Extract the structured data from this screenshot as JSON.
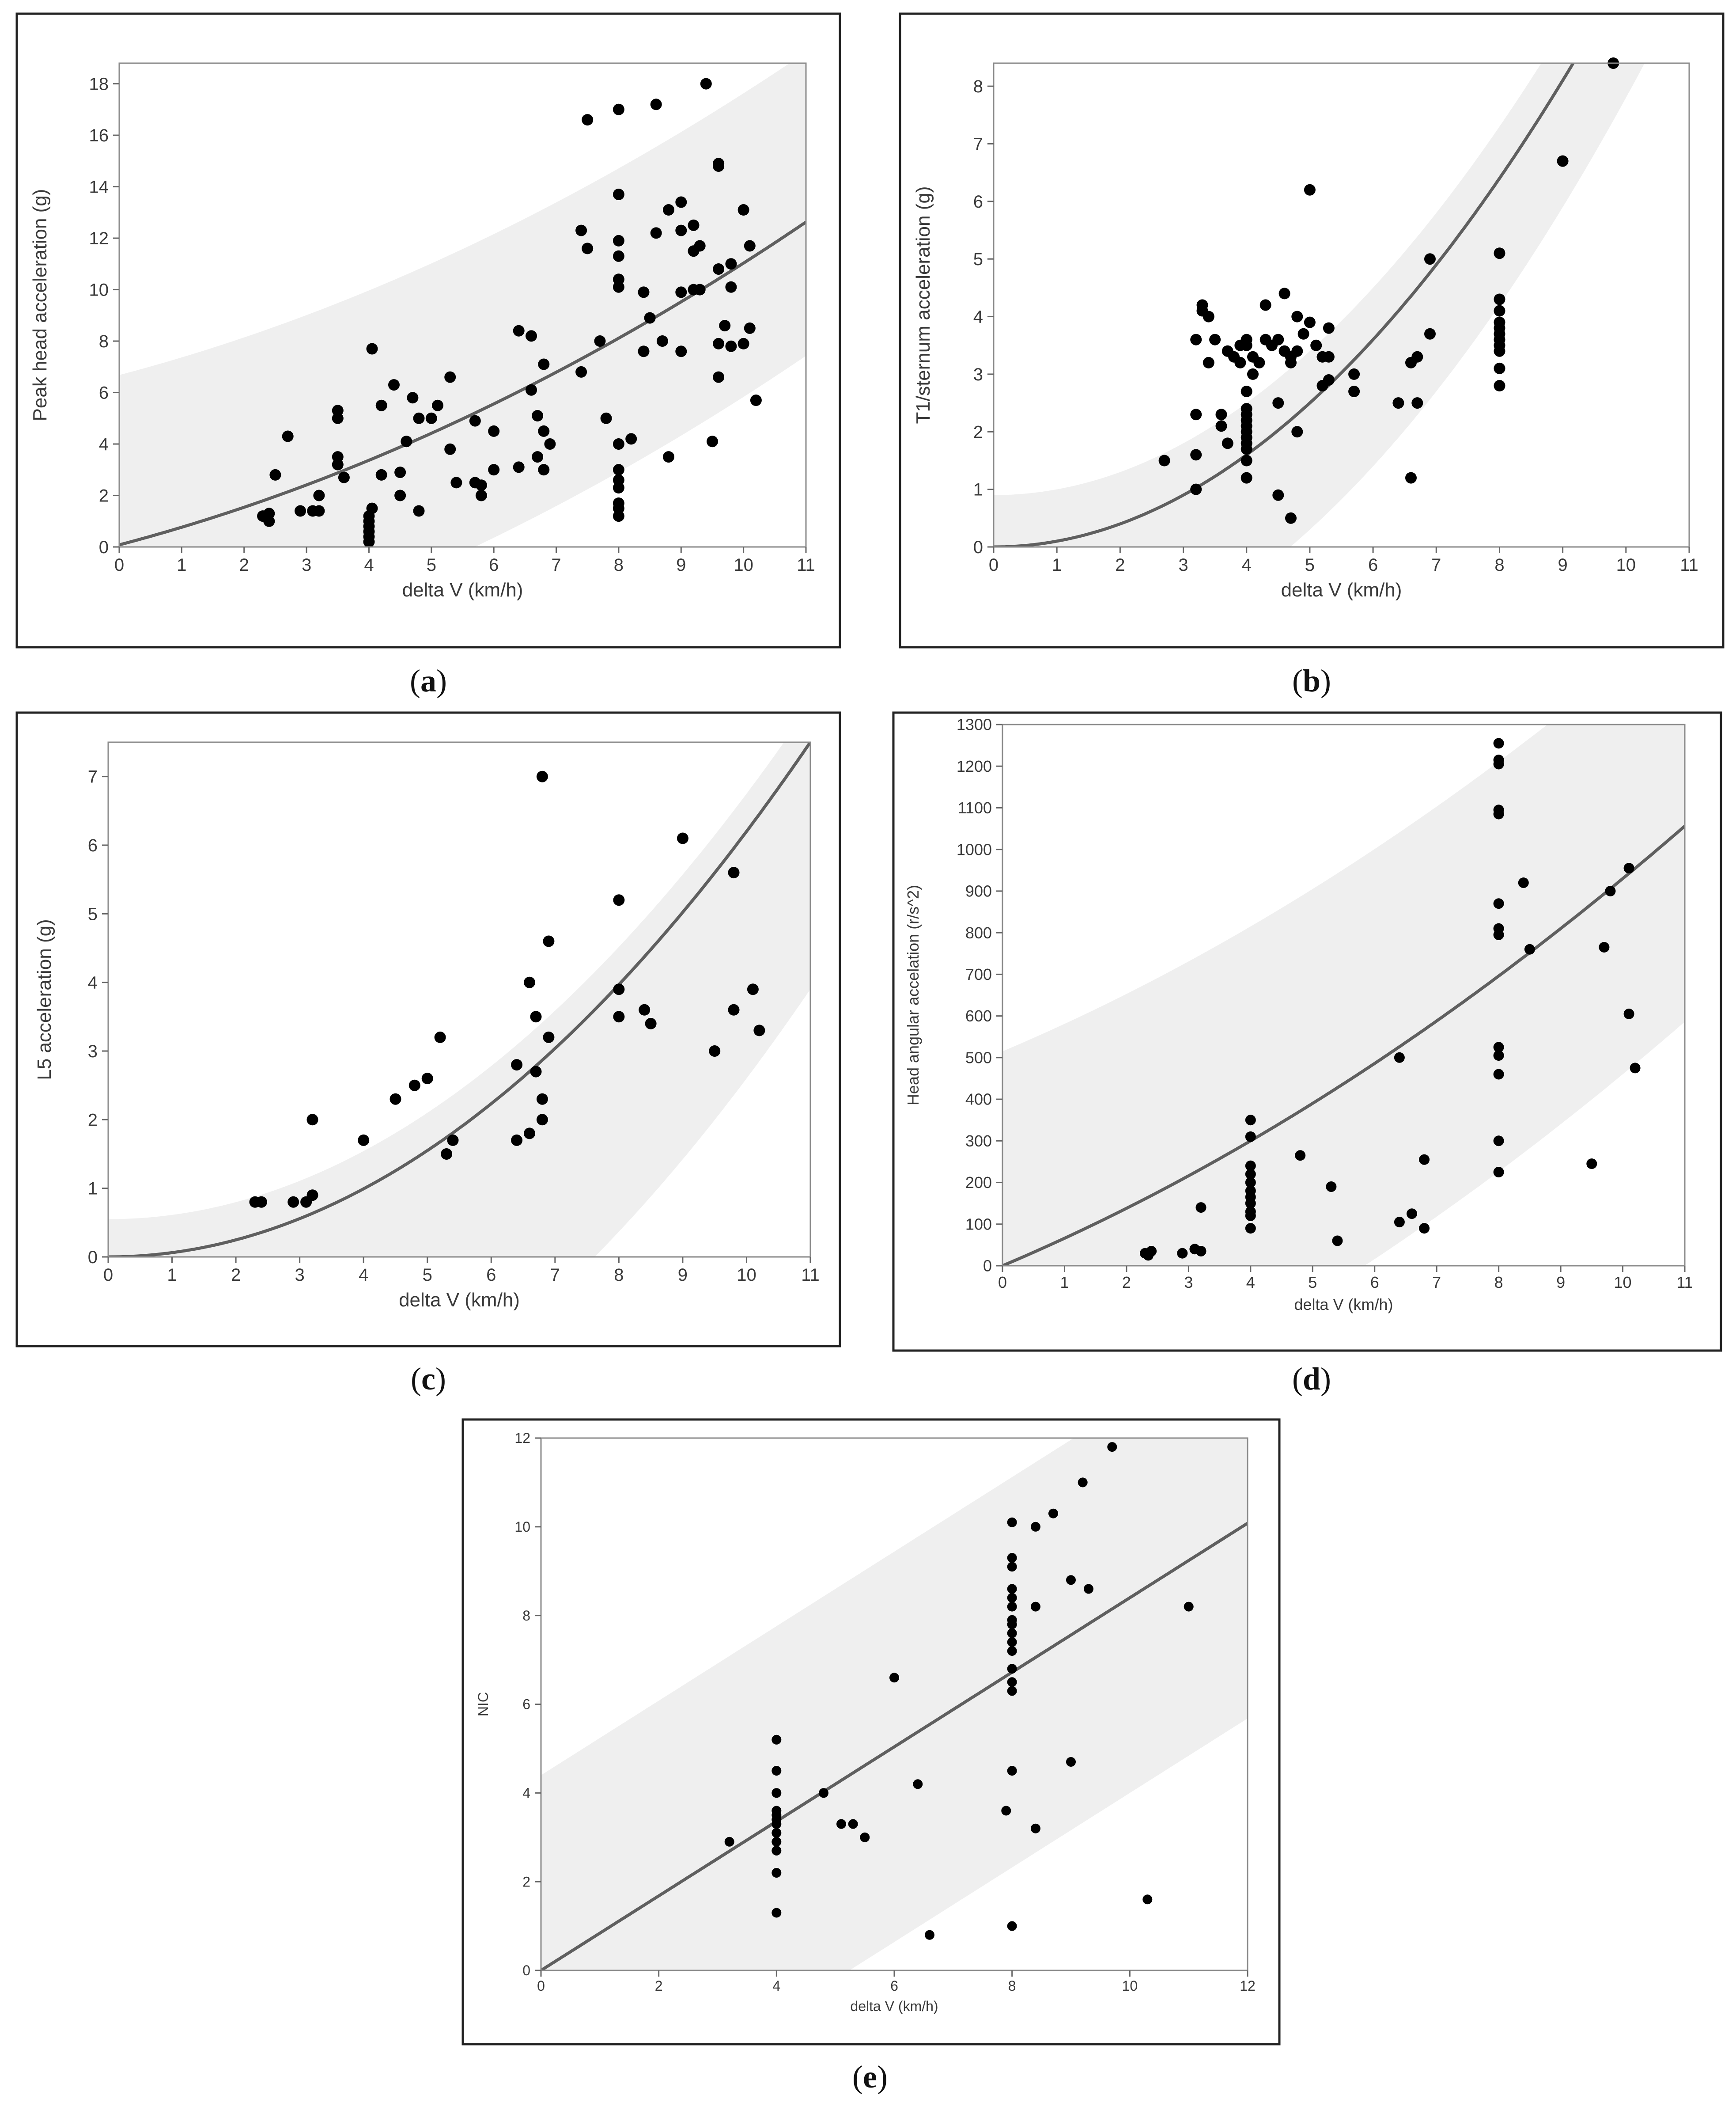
{
  "chart_data": [
    {
      "id": "a",
      "type": "scatter",
      "caption": "a",
      "xlabel": "delta V (km/h)",
      "ylabel": "Peak head acceleration (g)",
      "xlim": [
        0,
        11
      ],
      "ylim": [
        0,
        18.8
      ],
      "xticks": [
        0,
        1,
        2,
        3,
        4,
        5,
        6,
        7,
        8,
        9,
        10,
        11
      ],
      "yticks": [
        0,
        2,
        4,
        6,
        8,
        10,
        12,
        14,
        16,
        18
      ],
      "grid": false,
      "fit": {
        "type": "quadratic",
        "a": 0.0455,
        "b": 0.64,
        "c": 0.08
      },
      "band": {
        "lower_shift": -5.2,
        "upper_shift": 6.6
      },
      "points": [
        [
          2.3,
          1.2
        ],
        [
          2.4,
          1.0
        ],
        [
          2.4,
          1.3
        ],
        [
          2.5,
          2.8
        ],
        [
          2.7,
          4.3
        ],
        [
          2.9,
          1.4
        ],
        [
          3.1,
          1.4
        ],
        [
          3.2,
          2.0
        ],
        [
          3.2,
          1.4
        ],
        [
          3.5,
          5.3
        ],
        [
          3.5,
          5.0
        ],
        [
          3.5,
          3.5
        ],
        [
          3.5,
          3.2
        ],
        [
          3.6,
          2.7
        ],
        [
          4.0,
          1.0
        ],
        [
          4.0,
          1.2
        ],
        [
          4.0,
          0.8
        ],
        [
          4.0,
          0.6
        ],
        [
          4.0,
          0.4
        ],
        [
          4.0,
          0.2
        ],
        [
          4.05,
          1.5
        ],
        [
          4.05,
          7.7
        ],
        [
          4.2,
          2.8
        ],
        [
          4.2,
          5.5
        ],
        [
          4.4,
          6.3
        ],
        [
          4.5,
          2.0
        ],
        [
          4.5,
          2.9
        ],
        [
          4.6,
          4.1
        ],
        [
          4.7,
          5.8
        ],
        [
          4.8,
          1.4
        ],
        [
          4.8,
          5.0
        ],
        [
          5.0,
          5.0
        ],
        [
          5.1,
          5.5
        ],
        [
          5.3,
          3.8
        ],
        [
          5.3,
          6.6
        ],
        [
          5.4,
          2.5
        ],
        [
          5.7,
          2.5
        ],
        [
          5.7,
          4.9
        ],
        [
          5.8,
          2.0
        ],
        [
          5.8,
          2.4
        ],
        [
          6.0,
          3.0
        ],
        [
          6.0,
          4.5
        ],
        [
          6.4,
          8.4
        ],
        [
          6.4,
          3.1
        ],
        [
          6.6,
          6.1
        ],
        [
          6.6,
          8.2
        ],
        [
          6.7,
          3.5
        ],
        [
          6.7,
          5.1
        ],
        [
          6.8,
          4.5
        ],
        [
          6.8,
          3.0
        ],
        [
          6.8,
          7.1
        ],
        [
          6.9,
          4.0
        ],
        [
          7.4,
          6.8
        ],
        [
          7.4,
          12.3
        ],
        [
          7.5,
          11.6
        ],
        [
          7.5,
          16.6
        ],
        [
          7.7,
          8.0
        ],
        [
          7.8,
          5.0
        ],
        [
          8.0,
          17.0
        ],
        [
          8.0,
          13.7
        ],
        [
          8.0,
          11.9
        ],
        [
          8.0,
          11.3
        ],
        [
          8.0,
          10.4
        ],
        [
          8.0,
          10.1
        ],
        [
          8.0,
          4.0
        ],
        [
          8.0,
          3.0
        ],
        [
          8.0,
          2.6
        ],
        [
          8.0,
          2.3
        ],
        [
          8.0,
          1.7
        ],
        [
          8.0,
          1.5
        ],
        [
          8.0,
          1.2
        ],
        [
          8.2,
          4.2
        ],
        [
          8.4,
          9.9
        ],
        [
          8.4,
          7.6
        ],
        [
          8.5,
          8.9
        ],
        [
          8.6,
          12.2
        ],
        [
          8.6,
          17.2
        ],
        [
          8.7,
          8.0
        ],
        [
          8.8,
          13.1
        ],
        [
          8.8,
          3.5
        ],
        [
          9.0,
          13.4
        ],
        [
          9.0,
          12.3
        ],
        [
          9.0,
          9.9
        ],
        [
          9.0,
          7.6
        ],
        [
          9.2,
          11.5
        ],
        [
          9.2,
          10.0
        ],
        [
          9.2,
          12.5
        ],
        [
          9.3,
          10.0
        ],
        [
          9.3,
          11.7
        ],
        [
          9.4,
          18.0
        ],
        [
          9.5,
          4.1
        ],
        [
          9.6,
          14.8
        ],
        [
          9.6,
          14.9
        ],
        [
          9.6,
          10.8
        ],
        [
          9.6,
          7.9
        ],
        [
          9.6,
          6.6
        ],
        [
          9.7,
          8.6
        ],
        [
          9.8,
          7.8
        ],
        [
          9.8,
          11.0
        ],
        [
          9.8,
          10.1
        ],
        [
          10.0,
          13.1
        ],
        [
          10.0,
          7.9
        ],
        [
          10.1,
          8.5
        ],
        [
          10.1,
          11.7
        ],
        [
          10.2,
          5.7
        ]
      ]
    },
    {
      "id": "b",
      "type": "scatter",
      "caption": "b",
      "xlabel": "delta V (km/h)",
      "ylabel": "T1/sternum acceleration (g)",
      "xlim": [
        0,
        11
      ],
      "ylim": [
        0,
        8.4
      ],
      "xticks": [
        0,
        1,
        2,
        3,
        4,
        5,
        6,
        7,
        8,
        9,
        10,
        11
      ],
      "yticks": [
        0,
        1,
        2,
        3,
        4,
        5,
        6,
        7,
        8
      ],
      "grid": false,
      "fit": {
        "type": "quadratic",
        "a": 0.1,
        "b": 0.0,
        "c": 0.0
      },
      "band": {
        "lower_shift": -2.2,
        "upper_shift": 0.9
      },
      "points": [
        [
          2.7,
          1.5
        ],
        [
          3.2,
          1.0
        ],
        [
          3.2,
          1.6
        ],
        [
          3.2,
          2.3
        ],
        [
          3.2,
          3.6
        ],
        [
          3.3,
          4.2
        ],
        [
          3.3,
          4.1
        ],
        [
          3.4,
          4.0
        ],
        [
          3.4,
          3.2
        ],
        [
          3.5,
          3.6
        ],
        [
          3.6,
          2.3
        ],
        [
          3.6,
          2.1
        ],
        [
          3.7,
          1.8
        ],
        [
          3.7,
          3.4
        ],
        [
          3.8,
          3.3
        ],
        [
          3.9,
          3.5
        ],
        [
          3.9,
          3.2
        ],
        [
          4.0,
          3.6
        ],
        [
          4.0,
          3.5
        ],
        [
          4.0,
          2.7
        ],
        [
          4.0,
          2.4
        ],
        [
          4.0,
          2.3
        ],
        [
          4.0,
          2.2
        ],
        [
          4.0,
          2.1
        ],
        [
          4.0,
          2.0
        ],
        [
          4.0,
          1.9
        ],
        [
          4.0,
          1.8
        ],
        [
          4.0,
          1.7
        ],
        [
          4.0,
          1.5
        ],
        [
          4.0,
          1.2
        ],
        [
          4.1,
          3.0
        ],
        [
          4.1,
          3.3
        ],
        [
          4.2,
          3.2
        ],
        [
          4.3,
          3.6
        ],
        [
          4.3,
          4.2
        ],
        [
          4.4,
          3.5
        ],
        [
          4.5,
          0.9
        ],
        [
          4.5,
          2.5
        ],
        [
          4.5,
          3.6
        ],
        [
          4.6,
          4.4
        ],
        [
          4.6,
          3.4
        ],
        [
          4.7,
          3.3
        ],
        [
          4.7,
          3.2
        ],
        [
          4.7,
          0.5
        ],
        [
          4.8,
          3.4
        ],
        [
          4.8,
          2.0
        ],
        [
          4.8,
          4.0
        ],
        [
          4.9,
          3.7
        ],
        [
          5.0,
          3.9
        ],
        [
          5.0,
          6.2
        ],
        [
          5.1,
          3.5
        ],
        [
          5.2,
          3.3
        ],
        [
          5.2,
          2.8
        ],
        [
          5.3,
          3.3
        ],
        [
          5.3,
          2.9
        ],
        [
          5.3,
          3.8
        ],
        [
          5.7,
          3.0
        ],
        [
          5.7,
          2.7
        ],
        [
          6.4,
          2.5
        ],
        [
          6.6,
          1.2
        ],
        [
          6.6,
          3.2
        ],
        [
          6.7,
          3.3
        ],
        [
          6.7,
          2.5
        ],
        [
          6.9,
          3.7
        ],
        [
          6.9,
          5.0
        ],
        [
          8.0,
          5.1
        ],
        [
          8.0,
          4.3
        ],
        [
          8.0,
          4.1
        ],
        [
          8.0,
          3.9
        ],
        [
          8.0,
          3.8
        ],
        [
          8.0,
          3.7
        ],
        [
          8.0,
          3.6
        ],
        [
          8.0,
          3.5
        ],
        [
          8.0,
          3.4
        ],
        [
          8.0,
          3.1
        ],
        [
          8.0,
          2.8
        ],
        [
          9.0,
          6.7
        ],
        [
          9.8,
          8.4
        ]
      ]
    },
    {
      "id": "c",
      "type": "scatter",
      "caption": "c",
      "xlabel": "delta V (km/h)",
      "ylabel": "L5 acceleration (g)",
      "xlim": [
        0,
        11
      ],
      "ylim": [
        0,
        7.5
      ],
      "xticks": [
        0,
        1,
        2,
        3,
        4,
        5,
        6,
        7,
        8,
        9,
        10,
        11
      ],
      "yticks": [
        0,
        1,
        2,
        3,
        4,
        5,
        6,
        7
      ],
      "grid": false,
      "fit": {
        "type": "quadratic",
        "a": 0.062,
        "b": 0.0,
        "c": 0.0
      },
      "band": {
        "lower_shift": -3.6,
        "upper_shift": 0.55
      },
      "points": [
        [
          2.3,
          0.8
        ],
        [
          2.4,
          0.8
        ],
        [
          2.9,
          0.8
        ],
        [
          3.1,
          0.8
        ],
        [
          3.2,
          0.9
        ],
        [
          3.2,
          2.0
        ],
        [
          4.0,
          1.7
        ],
        [
          4.5,
          2.3
        ],
        [
          4.8,
          2.5
        ],
        [
          5.0,
          2.6
        ],
        [
          5.2,
          3.2
        ],
        [
          5.3,
          1.5
        ],
        [
          5.4,
          1.7
        ],
        [
          6.4,
          2.8
        ],
        [
          6.4,
          1.7
        ],
        [
          6.6,
          1.8
        ],
        [
          6.6,
          4.0
        ],
        [
          6.7,
          3.5
        ],
        [
          6.7,
          2.7
        ],
        [
          6.8,
          2.3
        ],
        [
          6.8,
          2.0
        ],
        [
          6.8,
          7.0
        ],
        [
          6.9,
          3.2
        ],
        [
          6.9,
          4.6
        ],
        [
          8.0,
          5.2
        ],
        [
          8.0,
          3.9
        ],
        [
          8.0,
          3.5
        ],
        [
          8.4,
          3.6
        ],
        [
          8.5,
          3.4
        ],
        [
          9.0,
          6.1
        ],
        [
          9.5,
          3.0
        ],
        [
          9.8,
          3.6
        ],
        [
          9.8,
          5.6
        ],
        [
          10.1,
          3.9
        ],
        [
          10.2,
          3.3
        ]
      ]
    },
    {
      "id": "d",
      "type": "scatter",
      "caption": "d",
      "xlabel": "delta V (km/h)",
      "ylabel": "Head angular accelation (r/s^2)",
      "xlim": [
        0,
        11
      ],
      "ylim": [
        0,
        1300
      ],
      "xticks": [
        0,
        1,
        2,
        3,
        4,
        5,
        6,
        7,
        8,
        9,
        10,
        11
      ],
      "yticks": [
        0,
        100,
        200,
        300,
        400,
        500,
        600,
        700,
        800,
        900,
        1000,
        1100,
        1200,
        1300
      ],
      "grid": false,
      "fit": {
        "type": "quadratic",
        "a": 3.0,
        "b": 63.0,
        "c": 0.0
      },
      "band": {
        "lower_shift": -470,
        "upper_shift": 515
      },
      "points": [
        [
          2.3,
          30
        ],
        [
          2.35,
          25
        ],
        [
          2.4,
          35
        ],
        [
          2.9,
          30
        ],
        [
          3.1,
          40
        ],
        [
          3.2,
          35
        ],
        [
          3.2,
          140
        ],
        [
          4.0,
          350
        ],
        [
          4.0,
          310
        ],
        [
          4.0,
          240
        ],
        [
          4.0,
          220
        ],
        [
          4.0,
          200
        ],
        [
          4.0,
          180
        ],
        [
          4.0,
          165
        ],
        [
          4.0,
          150
        ],
        [
          4.0,
          130
        ],
        [
          4.0,
          120
        ],
        [
          4.0,
          90
        ],
        [
          4.8,
          265
        ],
        [
          5.3,
          190
        ],
        [
          5.4,
          60
        ],
        [
          6.4,
          500
        ],
        [
          6.4,
          105
        ],
        [
          6.6,
          125
        ],
        [
          6.8,
          90
        ],
        [
          6.8,
          255
        ],
        [
          8.0,
          1255
        ],
        [
          8.0,
          1215
        ],
        [
          8.0,
          1205
        ],
        [
          8.0,
          1095
        ],
        [
          8.0,
          1085
        ],
        [
          8.0,
          870
        ],
        [
          8.0,
          810
        ],
        [
          8.0,
          795
        ],
        [
          8.0,
          525
        ],
        [
          8.0,
          505
        ],
        [
          8.0,
          460
        ],
        [
          8.0,
          300
        ],
        [
          8.0,
          225
        ],
        [
          8.4,
          920
        ],
        [
          8.5,
          760
        ],
        [
          9.5,
          245
        ],
        [
          9.7,
          765
        ],
        [
          9.8,
          900
        ],
        [
          10.1,
          955
        ],
        [
          10.1,
          605
        ],
        [
          10.2,
          475
        ]
      ]
    },
    {
      "id": "e",
      "type": "scatter",
      "caption": "e",
      "xlabel": "delta V (km/h)",
      "ylabel": "NIC",
      "xlim": [
        0,
        12
      ],
      "ylim": [
        0,
        12
      ],
      "xticks": [
        0,
        2,
        4,
        6,
        8,
        10,
        12
      ],
      "yticks": [
        0,
        2,
        4,
        6,
        8,
        10,
        12
      ],
      "grid": false,
      "fit": {
        "type": "linear",
        "a": 0.0,
        "b": 0.84,
        "c": 0.0
      },
      "band": {
        "lower_shift": -4.4,
        "upper_shift": 4.4
      },
      "points": [
        [
          3.2,
          2.9
        ],
        [
          4.0,
          5.2
        ],
        [
          4.0,
          4.5
        ],
        [
          4.0,
          4.0
        ],
        [
          4.0,
          3.6
        ],
        [
          4.0,
          3.5
        ],
        [
          4.0,
          3.4
        ],
        [
          4.0,
          3.3
        ],
        [
          4.0,
          3.1
        ],
        [
          4.0,
          2.9
        ],
        [
          4.0,
          2.7
        ],
        [
          4.0,
          2.2
        ],
        [
          4.0,
          1.3
        ],
        [
          4.8,
          4.0
        ],
        [
          5.1,
          3.3
        ],
        [
          5.3,
          3.3
        ],
        [
          5.5,
          3.0
        ],
        [
          6.0,
          6.6
        ],
        [
          6.4,
          4.2
        ],
        [
          6.6,
          0.8
        ],
        [
          7.9,
          3.6
        ],
        [
          8.0,
          10.1
        ],
        [
          8.0,
          9.3
        ],
        [
          8.0,
          9.1
        ],
        [
          8.0,
          8.6
        ],
        [
          8.0,
          8.4
        ],
        [
          8.0,
          8.2
        ],
        [
          8.0,
          7.9
        ],
        [
          8.0,
          7.8
        ],
        [
          8.0,
          7.6
        ],
        [
          8.0,
          7.4
        ],
        [
          8.0,
          7.2
        ],
        [
          8.0,
          6.8
        ],
        [
          8.0,
          6.5
        ],
        [
          8.0,
          6.3
        ],
        [
          8.0,
          4.5
        ],
        [
          8.0,
          1.0
        ],
        [
          8.4,
          10.0
        ],
        [
          8.4,
          8.2
        ],
        [
          8.4,
          3.2
        ],
        [
          8.7,
          10.3
        ],
        [
          9.0,
          8.8
        ],
        [
          9.0,
          4.7
        ],
        [
          9.2,
          11.0
        ],
        [
          9.3,
          8.6
        ],
        [
          9.7,
          11.8
        ],
        [
          10.3,
          1.6
        ],
        [
          11.0,
          8.2
        ]
      ]
    }
  ]
}
